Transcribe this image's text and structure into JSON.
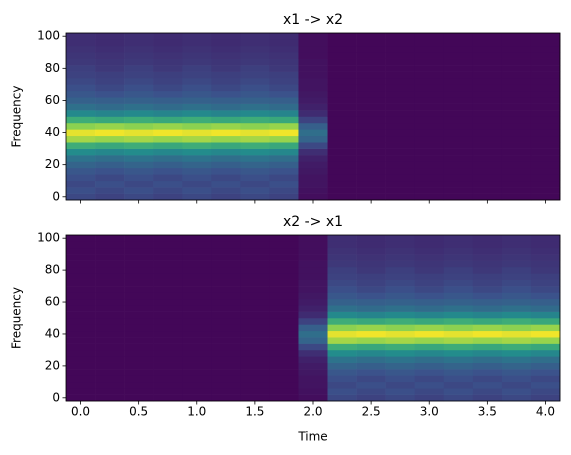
{
  "chart_data": [
    {
      "type": "heatmap",
      "title": "x1 -> x2",
      "ylabel": "Frequency",
      "colormap": "viridis",
      "vlim": [
        0,
        1
      ],
      "x": [
        0,
        0.25,
        0.5,
        0.75,
        1,
        1.25,
        1.5,
        1.75,
        2,
        2.25,
        2.5,
        2.75,
        3,
        3.25,
        3.5,
        3.75,
        4
      ],
      "y": [
        0,
        4,
        8,
        12,
        16,
        20,
        24,
        28,
        32,
        36,
        40,
        44,
        48,
        52,
        56,
        60,
        64,
        68,
        72,
        76,
        80,
        84,
        88,
        92,
        96,
        100
      ],
      "xlim": [
        -0.125,
        4.125
      ],
      "ylim": [
        -2,
        102
      ],
      "xticks": [
        0,
        0.5,
        1,
        1.5,
        2,
        2.5,
        3,
        3.5,
        4
      ],
      "yticks": [
        0,
        20,
        40,
        60,
        80,
        100
      ],
      "z": [
        [
          0.22,
          0.24,
          0.22,
          0.24,
          0.27,
          0.32,
          0.38,
          0.48,
          0.62,
          0.86,
          0.96,
          0.82,
          0.62,
          0.47,
          0.37,
          0.31,
          0.27,
          0.24,
          0.22,
          0.2,
          0.19,
          0.17,
          0.16,
          0.15,
          0.14,
          0.14
        ],
        [
          0.2,
          0.22,
          0.24,
          0.22,
          0.25,
          0.3,
          0.36,
          0.46,
          0.6,
          0.84,
          0.98,
          0.84,
          0.6,
          0.45,
          0.35,
          0.3,
          0.25,
          0.22,
          0.2,
          0.19,
          0.17,
          0.16,
          0.15,
          0.14,
          0.13,
          0.13
        ],
        [
          0.22,
          0.24,
          0.22,
          0.24,
          0.27,
          0.32,
          0.38,
          0.48,
          0.62,
          0.86,
          0.96,
          0.82,
          0.62,
          0.47,
          0.37,
          0.31,
          0.27,
          0.24,
          0.22,
          0.2,
          0.19,
          0.17,
          0.16,
          0.15,
          0.14,
          0.14
        ],
        [
          0.2,
          0.22,
          0.24,
          0.22,
          0.25,
          0.3,
          0.36,
          0.46,
          0.6,
          0.84,
          0.98,
          0.84,
          0.6,
          0.45,
          0.35,
          0.3,
          0.25,
          0.22,
          0.2,
          0.19,
          0.17,
          0.16,
          0.15,
          0.14,
          0.13,
          0.13
        ],
        [
          0.22,
          0.24,
          0.22,
          0.24,
          0.27,
          0.32,
          0.38,
          0.48,
          0.62,
          0.86,
          0.96,
          0.82,
          0.62,
          0.47,
          0.37,
          0.31,
          0.27,
          0.24,
          0.22,
          0.2,
          0.19,
          0.17,
          0.16,
          0.15,
          0.14,
          0.14
        ],
        [
          0.2,
          0.22,
          0.24,
          0.22,
          0.25,
          0.3,
          0.36,
          0.46,
          0.6,
          0.84,
          0.98,
          0.84,
          0.6,
          0.45,
          0.35,
          0.3,
          0.25,
          0.22,
          0.2,
          0.19,
          0.17,
          0.16,
          0.15,
          0.14,
          0.13,
          0.13
        ],
        [
          0.22,
          0.24,
          0.22,
          0.24,
          0.27,
          0.32,
          0.38,
          0.48,
          0.62,
          0.86,
          0.96,
          0.82,
          0.62,
          0.47,
          0.37,
          0.31,
          0.27,
          0.24,
          0.22,
          0.2,
          0.19,
          0.17,
          0.16,
          0.15,
          0.14,
          0.14
        ],
        [
          0.2,
          0.22,
          0.24,
          0.22,
          0.25,
          0.3,
          0.36,
          0.46,
          0.6,
          0.84,
          0.98,
          0.84,
          0.6,
          0.45,
          0.35,
          0.3,
          0.25,
          0.22,
          0.2,
          0.19,
          0.17,
          0.16,
          0.15,
          0.14,
          0.13,
          0.13
        ],
        [
          0.04,
          0.05,
          0.06,
          0.06,
          0.07,
          0.08,
          0.1,
          0.14,
          0.22,
          0.32,
          0.36,
          0.3,
          0.2,
          0.13,
          0.1,
          0.08,
          0.07,
          0.06,
          0.06,
          0.05,
          0.05,
          0.05,
          0.04,
          0.04,
          0.04,
          0.04
        ],
        [
          0.02,
          0.02,
          0.02,
          0.02,
          0.02,
          0.02,
          0.02,
          0.02,
          0.02,
          0.02,
          0.02,
          0.02,
          0.02,
          0.02,
          0.02,
          0.02,
          0.02,
          0.02,
          0.02,
          0.02,
          0.02,
          0.02,
          0.02,
          0.02,
          0.02,
          0.02
        ],
        [
          0.02,
          0.02,
          0.02,
          0.02,
          0.02,
          0.02,
          0.02,
          0.02,
          0.02,
          0.02,
          0.02,
          0.02,
          0.02,
          0.02,
          0.02,
          0.02,
          0.02,
          0.02,
          0.02,
          0.02,
          0.02,
          0.02,
          0.02,
          0.02,
          0.02,
          0.02
        ],
        [
          0.02,
          0.02,
          0.02,
          0.02,
          0.02,
          0.02,
          0.02,
          0.02,
          0.02,
          0.02,
          0.02,
          0.02,
          0.02,
          0.02,
          0.02,
          0.02,
          0.02,
          0.02,
          0.02,
          0.02,
          0.02,
          0.02,
          0.02,
          0.02,
          0.02,
          0.02
        ],
        [
          0.02,
          0.02,
          0.02,
          0.02,
          0.02,
          0.02,
          0.02,
          0.02,
          0.02,
          0.02,
          0.02,
          0.02,
          0.02,
          0.02,
          0.02,
          0.02,
          0.02,
          0.02,
          0.02,
          0.02,
          0.02,
          0.02,
          0.02,
          0.02,
          0.02,
          0.02
        ],
        [
          0.02,
          0.02,
          0.02,
          0.02,
          0.02,
          0.02,
          0.02,
          0.02,
          0.02,
          0.02,
          0.02,
          0.02,
          0.02,
          0.02,
          0.02,
          0.02,
          0.02,
          0.02,
          0.02,
          0.02,
          0.02,
          0.02,
          0.02,
          0.02,
          0.02,
          0.02
        ],
        [
          0.02,
          0.02,
          0.02,
          0.02,
          0.02,
          0.02,
          0.02,
          0.02,
          0.02,
          0.02,
          0.02,
          0.02,
          0.02,
          0.02,
          0.02,
          0.02,
          0.02,
          0.02,
          0.02,
          0.02,
          0.02,
          0.02,
          0.02,
          0.02,
          0.02,
          0.02
        ],
        [
          0.02,
          0.02,
          0.02,
          0.02,
          0.02,
          0.02,
          0.02,
          0.02,
          0.02,
          0.02,
          0.02,
          0.02,
          0.02,
          0.02,
          0.02,
          0.02,
          0.02,
          0.02,
          0.02,
          0.02,
          0.02,
          0.02,
          0.02,
          0.02,
          0.02,
          0.02
        ],
        [
          0.02,
          0.02,
          0.02,
          0.02,
          0.02,
          0.02,
          0.02,
          0.02,
          0.02,
          0.02,
          0.02,
          0.02,
          0.02,
          0.02,
          0.02,
          0.02,
          0.02,
          0.02,
          0.02,
          0.02,
          0.02,
          0.02,
          0.02,
          0.02,
          0.02,
          0.02
        ]
      ]
    },
    {
      "type": "heatmap",
      "title": "x2 -> x1",
      "ylabel": "Frequency",
      "xlabel": "Time",
      "colormap": "viridis",
      "vlim": [
        0,
        1
      ],
      "x": [
        0,
        0.25,
        0.5,
        0.75,
        1,
        1.25,
        1.5,
        1.75,
        2,
        2.25,
        2.5,
        2.75,
        3,
        3.25,
        3.5,
        3.75,
        4
      ],
      "y": [
        0,
        4,
        8,
        12,
        16,
        20,
        24,
        28,
        32,
        36,
        40,
        44,
        48,
        52,
        56,
        60,
        64,
        68,
        72,
        76,
        80,
        84,
        88,
        92,
        96,
        100
      ],
      "xlim": [
        -0.125,
        4.125
      ],
      "ylim": [
        -2,
        102
      ],
      "xticks": [
        {
          "value": 0,
          "label": "0.0"
        },
        0.5,
        {
          "value": 1,
          "label": "1.0"
        },
        1.5,
        {
          "value": 2,
          "label": "2.0"
        },
        2.5,
        {
          "value": 3,
          "label": "3.0"
        },
        3.5,
        {
          "value": 4,
          "label": "4.0"
        }
      ],
      "yticks": [
        0,
        20,
        40,
        60,
        80,
        100
      ],
      "z": [
        [
          0.02,
          0.02,
          0.02,
          0.02,
          0.02,
          0.02,
          0.02,
          0.02,
          0.02,
          0.02,
          0.02,
          0.02,
          0.02,
          0.02,
          0.02,
          0.02,
          0.02,
          0.02,
          0.02,
          0.02,
          0.02,
          0.02,
          0.02,
          0.02,
          0.02,
          0.02
        ],
        [
          0.02,
          0.02,
          0.02,
          0.02,
          0.02,
          0.02,
          0.02,
          0.02,
          0.02,
          0.02,
          0.02,
          0.02,
          0.02,
          0.02,
          0.02,
          0.02,
          0.02,
          0.02,
          0.02,
          0.02,
          0.02,
          0.02,
          0.02,
          0.02,
          0.02,
          0.02
        ],
        [
          0.02,
          0.02,
          0.02,
          0.02,
          0.02,
          0.02,
          0.02,
          0.02,
          0.02,
          0.02,
          0.02,
          0.02,
          0.02,
          0.02,
          0.02,
          0.02,
          0.02,
          0.02,
          0.02,
          0.02,
          0.02,
          0.02,
          0.02,
          0.02,
          0.02,
          0.02
        ],
        [
          0.02,
          0.02,
          0.02,
          0.02,
          0.02,
          0.02,
          0.02,
          0.02,
          0.02,
          0.02,
          0.02,
          0.02,
          0.02,
          0.02,
          0.02,
          0.02,
          0.02,
          0.02,
          0.02,
          0.02,
          0.02,
          0.02,
          0.02,
          0.02,
          0.02,
          0.02
        ],
        [
          0.02,
          0.02,
          0.02,
          0.02,
          0.02,
          0.02,
          0.02,
          0.02,
          0.02,
          0.02,
          0.02,
          0.02,
          0.02,
          0.02,
          0.02,
          0.02,
          0.02,
          0.02,
          0.02,
          0.02,
          0.02,
          0.02,
          0.02,
          0.02,
          0.02,
          0.02
        ],
        [
          0.02,
          0.02,
          0.02,
          0.02,
          0.02,
          0.02,
          0.02,
          0.02,
          0.02,
          0.02,
          0.02,
          0.02,
          0.02,
          0.02,
          0.02,
          0.02,
          0.02,
          0.02,
          0.02,
          0.02,
          0.02,
          0.02,
          0.02,
          0.02,
          0.02,
          0.02
        ],
        [
          0.02,
          0.02,
          0.02,
          0.02,
          0.02,
          0.02,
          0.02,
          0.02,
          0.02,
          0.02,
          0.02,
          0.02,
          0.02,
          0.02,
          0.02,
          0.02,
          0.02,
          0.02,
          0.02,
          0.02,
          0.02,
          0.02,
          0.02,
          0.02,
          0.02,
          0.02
        ],
        [
          0.02,
          0.02,
          0.02,
          0.02,
          0.02,
          0.02,
          0.02,
          0.02,
          0.02,
          0.02,
          0.02,
          0.02,
          0.02,
          0.02,
          0.02,
          0.02,
          0.02,
          0.02,
          0.02,
          0.02,
          0.02,
          0.02,
          0.02,
          0.02,
          0.02,
          0.02
        ],
        [
          0.04,
          0.05,
          0.06,
          0.06,
          0.07,
          0.08,
          0.1,
          0.14,
          0.22,
          0.32,
          0.36,
          0.3,
          0.2,
          0.13,
          0.1,
          0.08,
          0.07,
          0.06,
          0.06,
          0.05,
          0.05,
          0.05,
          0.04,
          0.04,
          0.04,
          0.04
        ],
        [
          0.22,
          0.24,
          0.22,
          0.24,
          0.27,
          0.32,
          0.38,
          0.48,
          0.62,
          0.86,
          0.96,
          0.82,
          0.62,
          0.47,
          0.37,
          0.31,
          0.27,
          0.24,
          0.22,
          0.2,
          0.19,
          0.17,
          0.16,
          0.15,
          0.14,
          0.14
        ],
        [
          0.2,
          0.22,
          0.24,
          0.22,
          0.25,
          0.3,
          0.36,
          0.46,
          0.6,
          0.84,
          0.98,
          0.84,
          0.6,
          0.45,
          0.35,
          0.3,
          0.25,
          0.22,
          0.2,
          0.19,
          0.17,
          0.16,
          0.15,
          0.14,
          0.13,
          0.13
        ],
        [
          0.22,
          0.24,
          0.22,
          0.24,
          0.27,
          0.32,
          0.38,
          0.48,
          0.62,
          0.86,
          0.96,
          0.82,
          0.62,
          0.47,
          0.37,
          0.31,
          0.27,
          0.24,
          0.22,
          0.2,
          0.19,
          0.17,
          0.16,
          0.15,
          0.14,
          0.14
        ],
        [
          0.2,
          0.22,
          0.24,
          0.22,
          0.25,
          0.3,
          0.36,
          0.46,
          0.6,
          0.84,
          0.98,
          0.84,
          0.6,
          0.45,
          0.35,
          0.3,
          0.25,
          0.22,
          0.2,
          0.19,
          0.17,
          0.16,
          0.15,
          0.14,
          0.13,
          0.13
        ],
        [
          0.22,
          0.24,
          0.22,
          0.24,
          0.27,
          0.32,
          0.38,
          0.48,
          0.62,
          0.86,
          0.96,
          0.82,
          0.62,
          0.47,
          0.37,
          0.31,
          0.27,
          0.24,
          0.22,
          0.2,
          0.19,
          0.17,
          0.16,
          0.15,
          0.14,
          0.14
        ],
        [
          0.2,
          0.22,
          0.24,
          0.22,
          0.25,
          0.3,
          0.36,
          0.46,
          0.6,
          0.84,
          0.98,
          0.84,
          0.6,
          0.45,
          0.35,
          0.3,
          0.25,
          0.22,
          0.2,
          0.19,
          0.17,
          0.16,
          0.15,
          0.14,
          0.13,
          0.13
        ],
        [
          0.22,
          0.24,
          0.22,
          0.24,
          0.27,
          0.32,
          0.38,
          0.48,
          0.62,
          0.86,
          0.96,
          0.82,
          0.62,
          0.47,
          0.37,
          0.31,
          0.27,
          0.24,
          0.22,
          0.2,
          0.19,
          0.17,
          0.16,
          0.15,
          0.14,
          0.14
        ],
        [
          0.2,
          0.22,
          0.24,
          0.22,
          0.25,
          0.3,
          0.36,
          0.46,
          0.6,
          0.84,
          0.98,
          0.84,
          0.6,
          0.45,
          0.35,
          0.3,
          0.25,
          0.22,
          0.2,
          0.19,
          0.17,
          0.16,
          0.15,
          0.14,
          0.13,
          0.13
        ]
      ]
    }
  ]
}
